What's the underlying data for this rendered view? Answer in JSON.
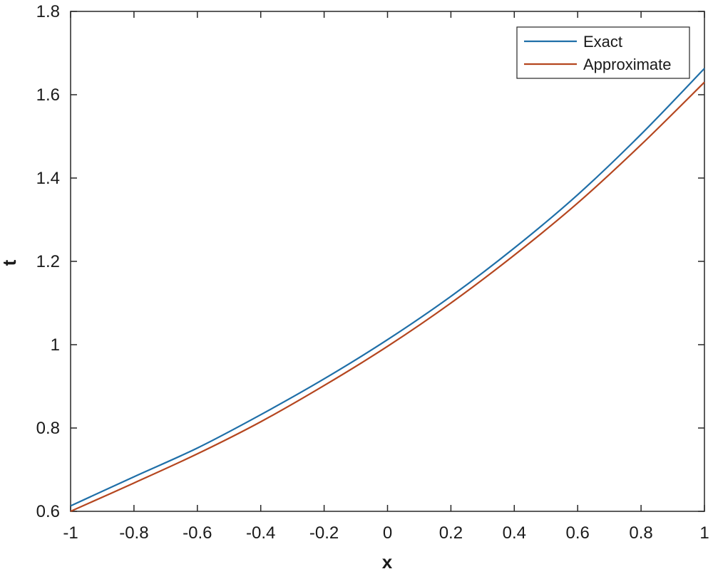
{
  "chart_data": {
    "type": "line",
    "xlabel": "x",
    "ylabel": "t",
    "xlim": [
      -1,
      1
    ],
    "ylim": [
      0.6,
      1.8
    ],
    "xticks": [
      -1,
      -0.8,
      -0.6,
      -0.4,
      -0.2,
      0,
      0.2,
      0.4,
      0.6,
      0.8,
      1
    ],
    "xtick_labels": [
      "-1",
      "-0.8",
      "-0.6",
      "-0.4",
      "-0.2",
      "0",
      "0.2",
      "0.4",
      "0.6",
      "0.8",
      "1"
    ],
    "yticks": [
      0.6,
      0.8,
      1,
      1.2,
      1.4,
      1.6,
      1.8
    ],
    "ytick_labels": [
      "0.6",
      "0.8",
      "1",
      "1.2",
      "1.4",
      "1.6",
      "1.8"
    ],
    "grid": false,
    "legend_position": "top-right",
    "x": [
      -1,
      -0.8,
      -0.6,
      -0.4,
      -0.2,
      0,
      0.2,
      0.4,
      0.6,
      0.8,
      1
    ],
    "series": [
      {
        "name": "Exact",
        "color": "#1f6fa8",
        "values": [
          0.613,
          0.683,
          0.752,
          0.832,
          0.918,
          1.012,
          1.116,
          1.232,
          1.36,
          1.505,
          1.663
        ]
      },
      {
        "name": "Approximate",
        "color": "#b5461f",
        "values": [
          0.6,
          0.668,
          0.738,
          0.815,
          0.902,
          0.996,
          1.1,
          1.215,
          1.34,
          1.48,
          1.63
        ]
      }
    ]
  }
}
